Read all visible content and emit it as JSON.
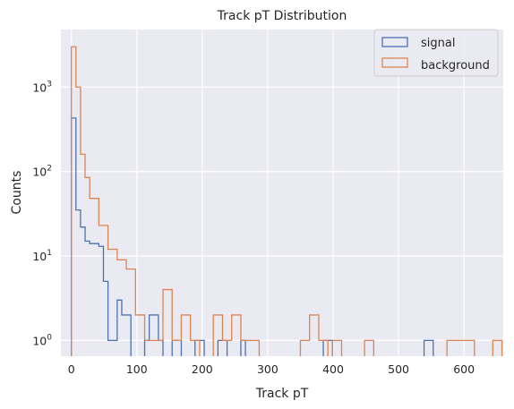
{
  "chart_data": {
    "type": "histogram",
    "title": "Track pT Distribution",
    "xlabel": "Track pT",
    "ylabel": "Counts",
    "xlim": [
      -16,
      660
    ],
    "ylim": [
      0.65,
      4800
    ],
    "yscale": "log",
    "grid": true,
    "legend_position": "top-right",
    "bin_width": 7.0,
    "xticks": [
      0,
      100,
      200,
      300,
      400,
      500,
      600
    ],
    "xtick_labels": [
      "0",
      "100",
      "200",
      "300",
      "400",
      "500",
      "600"
    ],
    "yticks": [
      1,
      10,
      100,
      1000
    ],
    "ytick_labels": [
      {
        "base": "10",
        "exp": "0"
      },
      {
        "base": "10",
        "exp": "1"
      },
      {
        "base": "10",
        "exp": "2"
      },
      {
        "base": "10",
        "exp": "3"
      }
    ],
    "series": [
      {
        "name": "signal",
        "color": "#4c72b0",
        "bins": [
          [
            0,
            430
          ],
          [
            7,
            35
          ],
          [
            14,
            22
          ],
          [
            21,
            15
          ],
          [
            28,
            14
          ],
          [
            35,
            14
          ],
          [
            42,
            13
          ],
          [
            49,
            5
          ],
          [
            56,
            1
          ],
          [
            63,
            1
          ],
          [
            70,
            3
          ],
          [
            77,
            2
          ],
          [
            84,
            2
          ],
          [
            112,
            1
          ],
          [
            119,
            2
          ],
          [
            126,
            2
          ],
          [
            133,
            1
          ],
          [
            154,
            1
          ],
          [
            161,
            1
          ],
          [
            189,
            1
          ],
          [
            196,
            1
          ],
          [
            224,
            1
          ],
          [
            231,
            1
          ],
          [
            259,
            1
          ],
          [
            385,
            1
          ],
          [
            392,
            1
          ],
          [
            539,
            1
          ],
          [
            546,
            1
          ]
        ]
      },
      {
        "name": "background",
        "color": "#dd8452",
        "bins": [
          [
            0,
            3000
          ],
          [
            7,
            1000
          ],
          [
            14,
            160
          ],
          [
            21,
            85
          ],
          [
            28,
            48
          ],
          [
            35,
            48
          ],
          [
            42,
            23
          ],
          [
            49,
            23
          ],
          [
            56,
            12
          ],
          [
            63,
            12
          ],
          [
            70,
            9
          ],
          [
            77,
            9
          ],
          [
            84,
            7
          ],
          [
            91,
            7
          ],
          [
            98,
            2
          ],
          [
            105,
            2
          ],
          [
            112,
            1
          ],
          [
            119,
            1
          ],
          [
            126,
            1
          ],
          [
            133,
            1
          ],
          [
            140,
            4
          ],
          [
            147,
            4
          ],
          [
            154,
            1
          ],
          [
            161,
            1
          ],
          [
            168,
            2
          ],
          [
            175,
            2
          ],
          [
            182,
            1
          ],
          [
            189,
            1
          ],
          [
            217,
            2
          ],
          [
            224,
            2
          ],
          [
            231,
            1
          ],
          [
            238,
            1
          ],
          [
            245,
            2
          ],
          [
            252,
            2
          ],
          [
            259,
            1
          ],
          [
            266,
            1
          ],
          [
            273,
            1
          ],
          [
            280,
            1
          ],
          [
            350,
            1
          ],
          [
            357,
            1
          ],
          [
            364,
            2
          ],
          [
            371,
            2
          ],
          [
            378,
            1
          ],
          [
            385,
            1
          ],
          [
            399,
            1
          ],
          [
            406,
            1
          ],
          [
            448,
            1
          ],
          [
            455,
            1
          ],
          [
            574,
            1
          ],
          [
            581,
            1
          ],
          [
            588,
            1
          ],
          [
            595,
            1
          ],
          [
            602,
            1
          ],
          [
            609,
            1
          ],
          [
            644,
            1
          ],
          [
            651,
            1
          ]
        ]
      }
    ]
  }
}
